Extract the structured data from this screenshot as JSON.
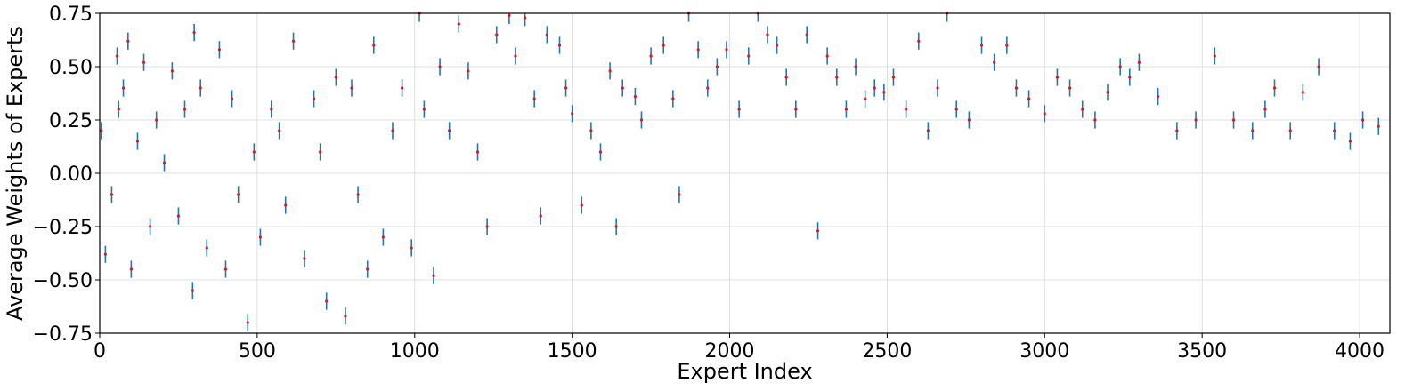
{
  "chart_data": {
    "type": "scatter",
    "title": "",
    "xlabel": "Expert Index",
    "ylabel": "Average Weights of Experts",
    "xlim": [
      0,
      4096
    ],
    "ylim": [
      -0.75,
      0.75
    ],
    "x_ticks": [
      0,
      500,
      1000,
      1500,
      2000,
      2500,
      3000,
      3500,
      4000
    ],
    "y_ticks": [
      -0.75,
      -0.5,
      -0.25,
      0.0,
      0.25,
      0.5,
      0.75
    ],
    "x_tick_labels": [
      "0",
      "500",
      "1000",
      "1500",
      "2000",
      "2500",
      "3000",
      "3500",
      "4000"
    ],
    "y_tick_labels": [
      "−0.75",
      "−0.50",
      "−0.25",
      "0.00",
      "0.25",
      "0.50",
      "0.75"
    ],
    "grid": true,
    "legend": "none",
    "marker_color": "#ee1111",
    "errorbar_color": "#1f77b4",
    "series": [
      {
        "x": [
          5,
          18,
          38,
          55,
          60,
          75,
          90,
          100,
          120,
          140,
          160,
          180,
          205,
          230,
          250,
          270,
          295,
          300,
          320,
          340,
          380,
          400,
          420,
          440,
          470,
          490,
          510,
          545,
          570,
          590,
          615,
          650,
          680,
          700,
          720,
          750,
          780,
          800,
          820,
          850,
          870,
          900,
          930,
          960,
          990,
          1015,
          1030,
          1060,
          1080,
          1110,
          1140,
          1170,
          1200,
          1230,
          1260,
          1300,
          1320,
          1350,
          1380,
          1400,
          1420,
          1460,
          1480,
          1500,
          1530,
          1560,
          1590,
          1620,
          1640,
          1660,
          1700,
          1720,
          1750,
          1790,
          1820,
          1840,
          1870,
          1900,
          1930,
          1960,
          1990,
          2030,
          2060,
          2090,
          2120,
          2150,
          2180,
          2210,
          2245,
          2280,
          2310,
          2340,
          2370,
          2400,
          2430,
          2460,
          2490,
          2520,
          2560,
          2600,
          2630,
          2660,
          2690,
          2720,
          2760,
          2800,
          2840,
          2880,
          2910,
          2950,
          3000,
          3040,
          3080,
          3120,
          3160,
          3200,
          3240,
          3270,
          3300,
          3360,
          3420,
          3480,
          3540,
          3600,
          3660,
          3700,
          3730,
          3780,
          3820,
          3870,
          3920,
          3970,
          4010,
          4060
        ],
        "y": [
          0.2,
          -0.38,
          -0.1,
          0.55,
          0.3,
          0.4,
          0.62,
          -0.45,
          0.15,
          0.52,
          -0.25,
          0.25,
          0.05,
          0.48,
          -0.2,
          0.3,
          -0.55,
          0.66,
          0.4,
          -0.35,
          0.58,
          -0.45,
          0.35,
          -0.1,
          -0.7,
          0.1,
          -0.3,
          0.3,
          0.2,
          -0.15,
          0.62,
          -0.4,
          0.35,
          0.1,
          -0.6,
          0.45,
          -0.67,
          0.4,
          -0.1,
          -0.45,
          0.6,
          -0.3,
          0.2,
          0.4,
          -0.35,
          0.75,
          0.3,
          -0.48,
          0.5,
          0.2,
          0.7,
          0.48,
          0.1,
          -0.25,
          0.65,
          0.74,
          0.55,
          0.73,
          0.35,
          -0.2,
          0.65,
          0.6,
          0.4,
          0.28,
          -0.15,
          0.2,
          0.1,
          0.48,
          -0.25,
          0.4,
          0.36,
          0.25,
          0.55,
          0.6,
          0.35,
          -0.1,
          0.75,
          0.58,
          0.4,
          0.5,
          0.58,
          0.3,
          0.55,
          0.75,
          0.65,
          0.6,
          0.45,
          0.3,
          0.65,
          -0.27,
          0.55,
          0.45,
          0.3,
          0.5,
          0.35,
          0.4,
          0.38,
          0.45,
          0.3,
          0.62,
          0.2,
          0.4,
          0.75,
          0.3,
          0.25,
          0.6,
          0.52,
          0.6,
          0.4,
          0.35,
          0.28,
          0.45,
          0.4,
          0.3,
          0.25,
          0.38,
          0.5,
          0.45,
          0.52,
          0.36,
          0.2,
          0.25,
          0.55,
          0.25,
          0.2,
          0.3,
          0.4,
          0.2,
          0.38,
          0.5,
          0.2,
          0.15,
          0.25,
          0.22
        ]
      }
    ]
  }
}
